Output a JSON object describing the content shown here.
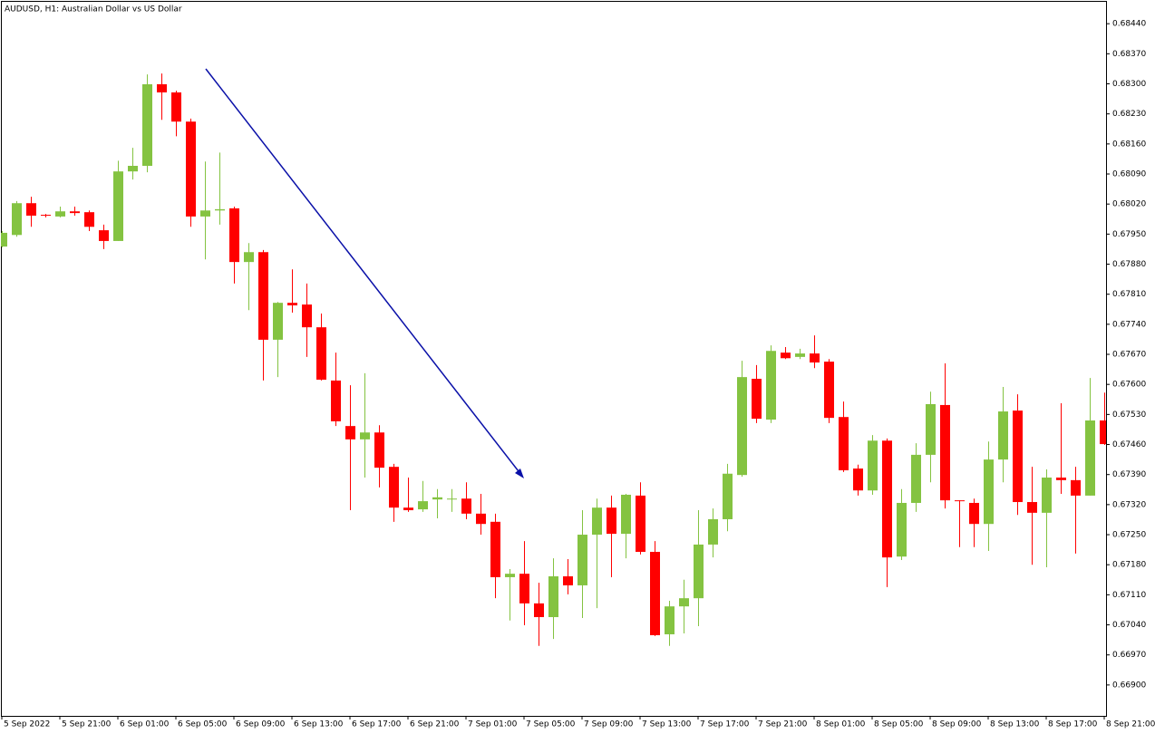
{
  "chart_data": {
    "type": "candlestick",
    "title": "AUDUSD, H1:  Australian Dollar vs US Dollar",
    "categories": [
      "5 Sep 2022",
      null,
      null,
      null,
      "5 Sep 21:00",
      null,
      null,
      null,
      "6 Sep 01:00",
      null,
      null,
      null,
      "6 Sep 05:00",
      null,
      null,
      null,
      "6 Sep 09:00",
      null,
      null,
      null,
      "6 Sep 13:00",
      null,
      null,
      null,
      "6 Sep 17:00",
      null,
      null,
      null,
      "6 Sep 21:00",
      null,
      null,
      null,
      "7 Sep 01:00",
      null,
      null,
      null,
      "7 Sep 05:00",
      null,
      null,
      null,
      "7 Sep 09:00",
      null,
      null,
      null,
      "7 Sep 13:00",
      null,
      null,
      null,
      "7 Sep 17:00",
      null,
      null,
      null,
      "7 Sep 21:00",
      null,
      null,
      null,
      "8 Sep 01:00",
      null,
      null,
      null,
      "8 Sep 05:00",
      null,
      null,
      null,
      "8 Sep 09:00",
      null,
      null,
      null,
      "8 Sep 13:00",
      null,
      null,
      null,
      "8 Sep 17:00",
      null,
      null,
      null,
      "8 Sep 21:00"
    ],
    "open": [
      0.67921,
      0.67948,
      0.68022,
      0.67995,
      0.67991,
      0.68003,
      0.68001,
      0.67959,
      0.67934,
      0.68096,
      0.68109,
      0.68299,
      0.6828,
      0.68212,
      0.67991,
      0.68005,
      0.6801,
      0.67885,
      0.67908,
      0.67704,
      0.6779,
      0.67786,
      0.67733,
      0.67609,
      0.67503,
      0.67472,
      0.67488,
      0.67408,
      0.67313,
      0.67309,
      0.67332,
      0.67334,
      0.67334,
      0.67299,
      0.6728,
      0.67151,
      0.67159,
      0.6709,
      0.67058,
      0.67153,
      0.67132,
      0.6725,
      0.67313,
      0.67252,
      0.67341,
      0.6721,
      0.67018,
      0.67083,
      0.67102,
      0.67227,
      0.67286,
      0.67389,
      0.67613,
      0.67518,
      0.67674,
      0.67664,
      0.67672,
      0.67653,
      0.67524,
      0.67404,
      0.67353,
      0.67469,
      0.67199,
      0.67324,
      0.67436,
      0.67552,
      0.6733,
      0.67324,
      0.67275,
      0.67425,
      0.67539,
      0.67326,
      0.67301,
      0.67383,
      0.67377,
      0.67341,
      0.67516
    ],
    "high": [
      0.67957,
      0.68027,
      0.68037,
      0.67997,
      0.68014,
      0.68014,
      0.68005,
      0.67972,
      0.68121,
      0.68151,
      0.68322,
      0.68324,
      0.68284,
      0.68219,
      0.68119,
      0.6814,
      0.68014,
      0.67929,
      0.67913,
      0.67792,
      0.67868,
      0.67835,
      0.67765,
      0.67674,
      0.67598,
      0.67626,
      0.67505,
      0.67415,
      0.67383,
      0.67375,
      0.67356,
      0.67356,
      0.67372,
      0.67345,
      0.67299,
      0.6717,
      0.67235,
      0.67138,
      0.67195,
      0.67193,
      0.67307,
      0.67334,
      0.67341,
      0.67345,
      0.67372,
      0.67235,
      0.67096,
      0.67145,
      0.67307,
      0.67311,
      0.67415,
      0.67655,
      0.67645,
      0.67691,
      0.67687,
      0.67683,
      0.67714,
      0.67659,
      0.6756,
      0.67413,
      0.67482,
      0.67474,
      0.67356,
      0.67463,
      0.67583,
      0.67649,
      0.6733,
      0.67334,
      0.67467,
      0.67594,
      0.67577,
      0.67408,
      0.67402,
      0.67556,
      0.67408,
      0.67615,
      0.67581
    ],
    "low": [
      0.67919,
      0.67944,
      0.67967,
      0.67989,
      0.67989,
      0.67993,
      0.67957,
      0.67915,
      0.67934,
      0.68077,
      0.68094,
      0.68216,
      0.68178,
      0.67967,
      0.67891,
      0.67972,
      0.67835,
      0.67773,
      0.67609,
      0.67617,
      0.67767,
      0.67664,
      0.67609,
      0.67503,
      0.67307,
      0.67383,
      0.6736,
      0.6728,
      0.67303,
      0.67303,
      0.67288,
      0.67303,
      0.67286,
      0.6725,
      0.67102,
      0.6705,
      0.67039,
      0.66991,
      0.67007,
      0.67111,
      0.67056,
      0.67079,
      0.67151,
      0.67195,
      0.67204,
      0.67014,
      0.66991,
      0.6702,
      0.67037,
      0.67197,
      0.67258,
      0.67385,
      0.6751,
      0.6751,
      0.67659,
      0.67659,
      0.67638,
      0.6751,
      0.67396,
      0.67341,
      0.67343,
      0.67128,
      0.67191,
      0.67303,
      0.67372,
      0.67311,
      0.67221,
      0.67221,
      0.67212,
      0.67372,
      0.67296,
      0.6718,
      0.67174,
      0.67345,
      0.67206,
      0.67341,
      0.67459
    ],
    "close": [
      0.67953,
      0.68022,
      0.67993,
      0.67993,
      0.68003,
      0.67999,
      0.67967,
      0.67934,
      0.68096,
      0.68109,
      0.68299,
      0.6828,
      0.68212,
      0.67991,
      0.68005,
      0.68008,
      0.67885,
      0.67908,
      0.67704,
      0.6779,
      0.67784,
      0.67733,
      0.67611,
      0.67514,
      0.67472,
      0.67488,
      0.67406,
      0.67313,
      0.67307,
      0.67328,
      0.67337,
      0.67334,
      0.67299,
      0.67275,
      0.67151,
      0.67159,
      0.6709,
      0.67058,
      0.67153,
      0.67132,
      0.6725,
      0.67313,
      0.67252,
      0.67343,
      0.6721,
      0.67016,
      0.67083,
      0.67102,
      0.67227,
      0.67286,
      0.67392,
      0.67617,
      0.6752,
      0.67678,
      0.67661,
      0.67672,
      0.67651,
      0.67522,
      0.674,
      0.67353,
      0.67469,
      0.67197,
      0.67324,
      0.67436,
      0.67554,
      0.6733,
      0.67328,
      0.67275,
      0.67425,
      0.67537,
      0.67326,
      0.67301,
      0.67383,
      0.67377,
      0.67341,
      0.67516,
      0.67461
    ],
    "up_color": "#84c341",
    "down_color": "#ff0000",
    "ylim": [
      0.66828,
      0.68491
    ],
    "yticks": [
      {
        "value": 0.6844,
        "label": "0.68440"
      },
      {
        "value": 0.6837,
        "label": "0.68370"
      },
      {
        "value": 0.683,
        "label": "0.68300"
      },
      {
        "value": 0.6823,
        "label": "0.68230"
      },
      {
        "value": 0.6816,
        "label": "0.68160"
      },
      {
        "value": 0.6809,
        "label": "0.68090"
      },
      {
        "value": 0.6802,
        "label": "0.68020"
      },
      {
        "value": 0.6795,
        "label": "0.67950"
      },
      {
        "value": 0.6788,
        "label": "0.67880"
      },
      {
        "value": 0.6781,
        "label": "0.67810"
      },
      {
        "value": 0.6774,
        "label": "0.67740"
      },
      {
        "value": 0.6767,
        "label": "0.67670"
      },
      {
        "value": 0.676,
        "label": "0.67600"
      },
      {
        "value": 0.6753,
        "label": "0.67530"
      },
      {
        "value": 0.6746,
        "label": "0.67460"
      },
      {
        "value": 0.6739,
        "label": "0.67390"
      },
      {
        "value": 0.6732,
        "label": "0.67320"
      },
      {
        "value": 0.6725,
        "label": "0.67250"
      },
      {
        "value": 0.6718,
        "label": "0.67180"
      },
      {
        "value": 0.6711,
        "label": "0.67110"
      },
      {
        "value": 0.6704,
        "label": "0.67040"
      },
      {
        "value": 0.6697,
        "label": "0.66970"
      },
      {
        "value": 0.669,
        "label": "0.66900"
      }
    ],
    "grid": false
  }
}
